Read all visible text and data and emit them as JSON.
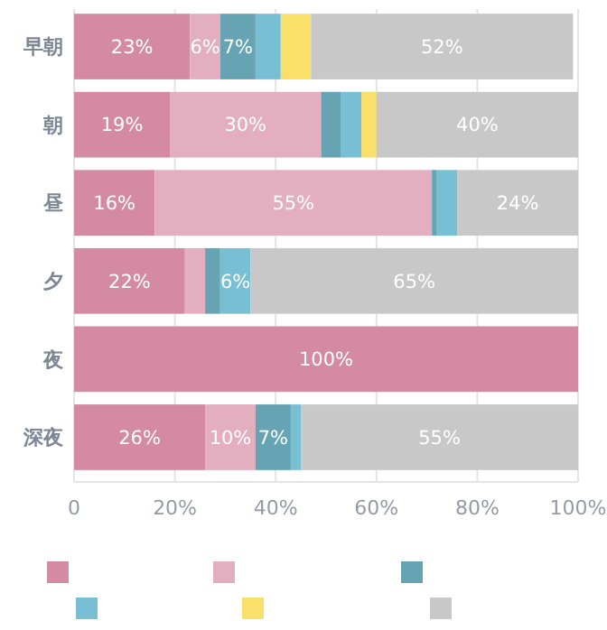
{
  "chart_data": {
    "type": "bar",
    "orientation": "horizontal",
    "stacked": true,
    "categories": [
      "早朝",
      "朝",
      "昼",
      "夕",
      "夜",
      "深夜"
    ],
    "series": [
      {
        "color": "#d48aa2",
        "values": [
          23,
          19,
          16,
          22,
          100,
          26
        ],
        "value_labels": [
          "23%",
          "19%",
          "16%",
          "22%",
          "100%",
          "26%"
        ]
      },
      {
        "color": "#e2aec0",
        "values": [
          6,
          30,
          55,
          4,
          0,
          10
        ],
        "value_labels": [
          "6%",
          "30%",
          "55%",
          null,
          null,
          "10%"
        ]
      },
      {
        "color": "#66a3b3",
        "values": [
          7,
          4,
          1,
          3,
          0,
          7
        ],
        "value_labels": [
          "7%",
          null,
          null,
          null,
          null,
          "7%"
        ]
      },
      {
        "color": "#78bfd4",
        "values": [
          5,
          4,
          4,
          6,
          0,
          2
        ],
        "value_labels": [
          null,
          null,
          null,
          "6%",
          null,
          null
        ]
      },
      {
        "color": "#f8e06a",
        "values": [
          6,
          3,
          0,
          0,
          0,
          0
        ],
        "value_labels": [
          null,
          null,
          null,
          null,
          null,
          null
        ]
      },
      {
        "color": "#c8c8c8",
        "values": [
          52,
          40,
          24,
          65,
          0,
          55
        ],
        "value_labels": [
          "52%",
          "40%",
          "24%",
          "65%",
          null,
          "55%"
        ]
      }
    ],
    "xlim": [
      0,
      100
    ],
    "xticks": [
      0,
      {
        "value": 20,
        "label": "20%"
      },
      {
        "value": 40,
        "label": "40%"
      },
      {
        "value": 60,
        "label": "60%"
      },
      {
        "value": 80,
        "label": "80%"
      },
      {
        "value": 100,
        "label": "100%"
      }
    ],
    "grid": "x"
  }
}
